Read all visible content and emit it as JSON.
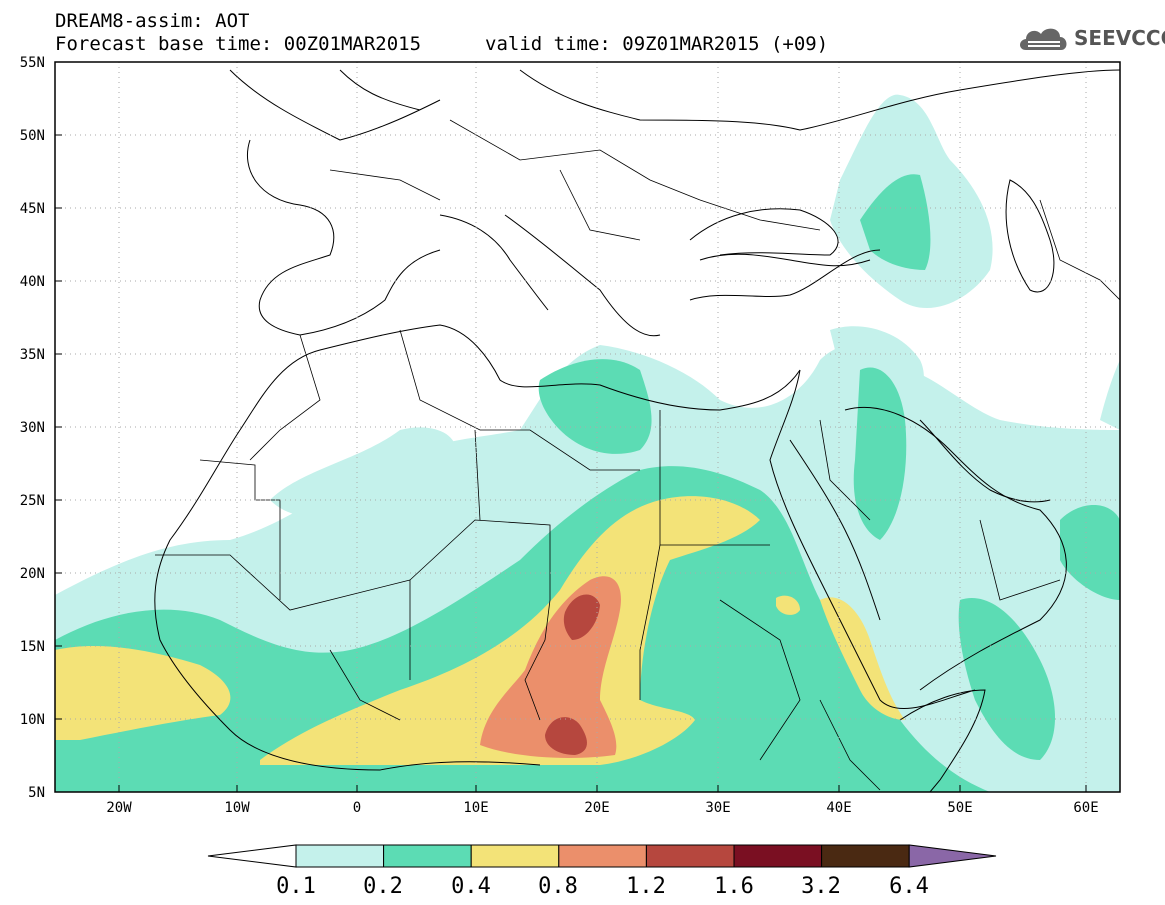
{
  "header": {
    "title": "DREAM8-assim: AOT",
    "base_time": "Forecast base time: 00Z01MAR2015",
    "valid_time": "valid time: 09Z01MAR2015 (+09)"
  },
  "logo": {
    "text": "SEEVCCC",
    "icon": "cloud-icon"
  },
  "map": {
    "lon_range": [
      -25,
      65
    ],
    "lat_range": [
      5,
      55
    ],
    "lat_ticks": [
      "55N",
      "50N",
      "45N",
      "40N",
      "35N",
      "30N",
      "25N",
      "20N",
      "15N",
      "10N",
      "5N"
    ],
    "lon_ticks": [
      "20W",
      "10W",
      "0",
      "10E",
      "20E",
      "30E",
      "40E",
      "50E",
      "60E"
    ],
    "grid": true
  },
  "colorbar": {
    "labels": [
      "0.1",
      "0.2",
      "0.4",
      "0.8",
      "1.2",
      "1.6",
      "3.2",
      "6.4"
    ],
    "colors": [
      "#c4f1eb",
      "#5cdcb4",
      "#f3e378",
      "#eb8f6b",
      "#b6473e",
      "#7a0f22",
      "#4a2912",
      "#8a67a7"
    ],
    "under_color": "#ffffff"
  }
}
